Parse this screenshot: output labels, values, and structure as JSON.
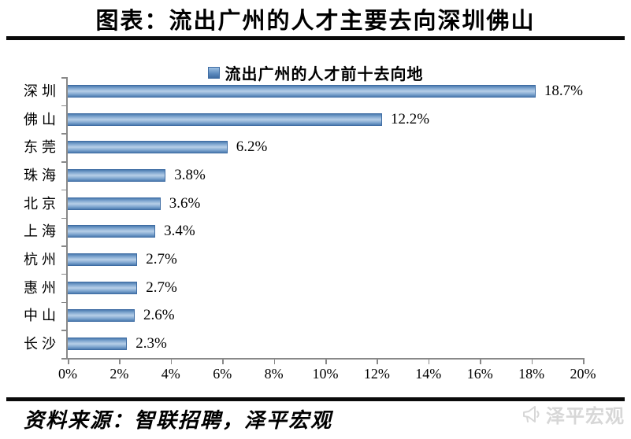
{
  "header": {
    "title": "图表：流出广州的人才主要去向深圳佛山"
  },
  "chart_data": {
    "type": "bar",
    "orientation": "horizontal",
    "title": "流出广州的人才前十去向地",
    "legend": "流出广州的人才前十去向地",
    "legend_position": "top-center",
    "categories": [
      "深圳",
      "佛山",
      "东莞",
      "珠海",
      "北京",
      "上海",
      "杭州",
      "惠州",
      "中山",
      "长沙"
    ],
    "values": [
      18.7,
      12.2,
      6.2,
      3.8,
      3.6,
      3.4,
      2.7,
      2.7,
      2.6,
      2.3
    ],
    "value_labels": [
      "18.7%",
      "12.2%",
      "6.2%",
      "3.8%",
      "3.6%",
      "3.4%",
      "2.7%",
      "2.7%",
      "2.6%",
      "2.3%"
    ],
    "xlim": [
      0,
      20
    ],
    "x_ticks": [
      "0%",
      "2%",
      "4%",
      "6%",
      "8%",
      "10%",
      "12%",
      "14%",
      "16%",
      "18%",
      "20%"
    ],
    "grid": false,
    "bar_color": "#4f81bd",
    "bar_highlight_color": "#b7cfe8",
    "bar_border_color": "#3e6ca3",
    "axis_color": "#898989"
  },
  "footer": {
    "source": "资料来源：智联招聘，泽平宏观",
    "watermark": "泽平宏观"
  }
}
